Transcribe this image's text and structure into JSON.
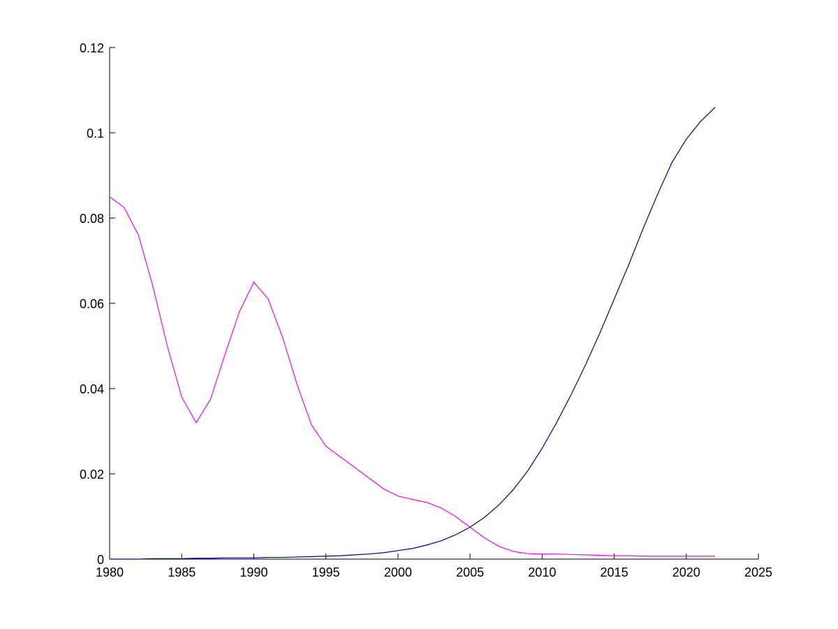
{
  "chart_data": {
    "type": "line",
    "x": [
      1980,
      1981,
      1982,
      1983,
      1984,
      1985,
      1986,
      1987,
      1988,
      1989,
      1990,
      1991,
      1992,
      1993,
      1994,
      1995,
      1996,
      1997,
      1998,
      1999,
      2000,
      2001,
      2002,
      2003,
      2004,
      2005,
      2006,
      2007,
      2008,
      2009,
      2010,
      2011,
      2012,
      2013,
      2014,
      2015,
      2016,
      2017,
      2018,
      2019,
      2020,
      2021,
      2022
    ],
    "series": [
      {
        "color": "#ff00ff",
        "values": [
          0.085,
          0.0825,
          0.076,
          0.064,
          0.05,
          0.038,
          0.032,
          0.0375,
          0.048,
          0.058,
          0.065,
          0.061,
          0.052,
          0.041,
          0.0315,
          0.0265,
          0.024,
          0.0215,
          0.019,
          0.0165,
          0.0148,
          0.014,
          0.0133,
          0.012,
          0.01,
          0.0075,
          0.005,
          0.003,
          0.0018,
          0.0013,
          0.0012,
          0.0012,
          0.0011,
          0.001,
          0.0009,
          0.0008,
          0.0008,
          0.0007,
          0.0007,
          0.0007,
          0.0007,
          0.0007,
          0.0007
        ]
      },
      {
        "color": "#00008b",
        "values": [
          0,
          0,
          0,
          0.0001,
          0.0001,
          0.0001,
          0.0002,
          0.0002,
          0.0003,
          0.0003,
          0.0003,
          0.0004,
          0.0004,
          0.0005,
          0.0006,
          0.0007,
          0.0008,
          0.001,
          0.0012,
          0.0015,
          0.002,
          0.0025,
          0.0033,
          0.0043,
          0.0057,
          0.0075,
          0.0098,
          0.0127,
          0.0163,
          0.0207,
          0.026,
          0.032,
          0.0385,
          0.0455,
          0.053,
          0.061,
          0.069,
          0.0775,
          0.0855,
          0.093,
          0.0985,
          0.1027,
          0.106
        ]
      }
    ],
    "xlim": [
      1980,
      2025
    ],
    "xticks": [
      1980,
      1985,
      1990,
      1995,
      2000,
      2005,
      2010,
      2015,
      2020,
      2025
    ],
    "ylim": [
      0,
      0.12
    ],
    "yticks": [
      0,
      0.02,
      0.04,
      0.06,
      0.08,
      0.1,
      0.12
    ]
  }
}
